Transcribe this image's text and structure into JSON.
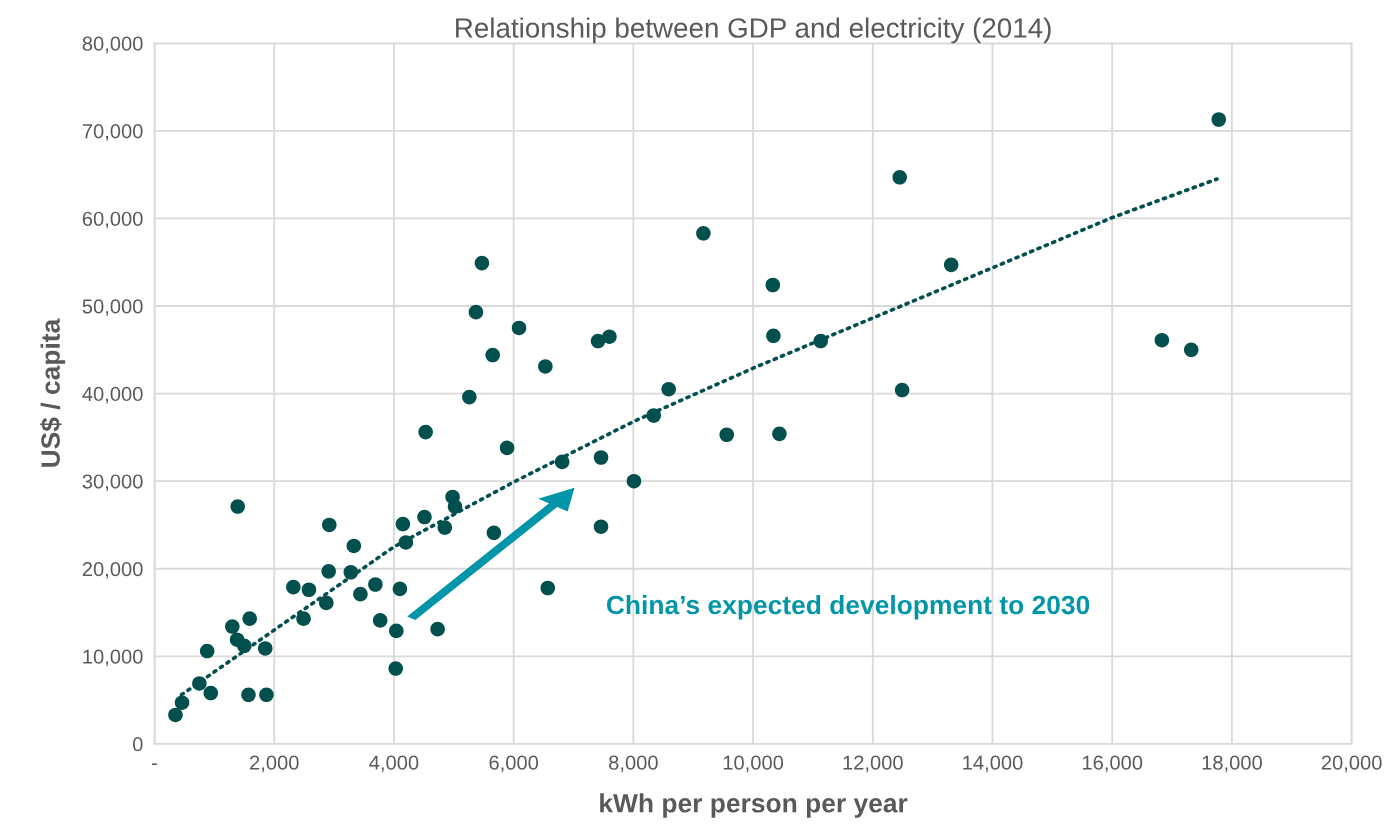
{
  "chart_data": {
    "type": "scatter",
    "title": "Relationship between GDP and electricity (2014)",
    "xlabel": "kWh per person per year",
    "ylabel": "US$ / capita",
    "series": [
      {
        "color": "#02504d",
        "marker": "circle",
        "x": [
          350,
          460,
          750,
          940,
          880,
          1300,
          1380,
          1500,
          1390,
          1590,
          1570,
          1850,
          1870,
          2320,
          2490,
          2580,
          2870,
          2920,
          2910,
          3280,
          3330,
          3440,
          3690,
          3770,
          4040,
          4030,
          4100,
          4150,
          4200,
          4510,
          4730,
          4850,
          4980,
          5020,
          5670,
          4530,
          5470,
          5370,
          6090,
          5650,
          6530,
          5260,
          5890,
          7410,
          7600,
          10330,
          10340,
          11130,
          8590,
          8340,
          9560,
          10440,
          7460,
          6810,
          8010,
          7460,
          6570,
          9170,
          12450,
          13310,
          12490,
          16830,
          17320,
          17780
        ],
        "values": [
          3300,
          4700,
          6900,
          5800,
          10600,
          13400,
          11900,
          11200,
          27100,
          14300,
          5600,
          10900,
          5600,
          17900,
          14300,
          17600,
          16100,
          25000,
          19700,
          19600,
          22600,
          17100,
          18200,
          14100,
          12900,
          8600,
          17700,
          25100,
          23000,
          25900,
          13100,
          24700,
          28200,
          27100,
          24100,
          35600,
          54900,
          49300,
          47500,
          44400,
          43100,
          39600,
          33800,
          46000,
          46500,
          52400,
          46600,
          46000,
          40500,
          37500,
          35300,
          35400,
          32700,
          32200,
          30000,
          24800,
          17800,
          58300,
          64700,
          54700,
          40400,
          46100,
          45000,
          71300
        ]
      },
      {
        "type": "line",
        "color": "#02504d",
        "line_style": "dotted",
        "x": [
          450,
          2000,
          4000,
          6000,
          8000,
          10000,
          16000,
          17750
        ],
        "values": [
          5600,
          13000,
          22500,
          29900,
          36800,
          42900,
          60100,
          64500
        ]
      }
    ],
    "annotations": [
      "China’s expected development to 2030"
    ],
    "grid": true,
    "xlim": [
      0,
      20000
    ],
    "xticks": [
      {
        "value": 0,
        "label": "-"
      },
      {
        "value": 2000,
        "label": "2,000"
      },
      {
        "value": 4000,
        "label": "4,000"
      },
      {
        "value": 6000,
        "label": "6,000"
      },
      {
        "value": 8000,
        "label": "8,000"
      },
      {
        "value": 10000,
        "label": "10,000"
      },
      {
        "value": 12000,
        "label": "12,000"
      },
      {
        "value": 14000,
        "label": "14,000"
      },
      {
        "value": 16000,
        "label": "16,000"
      },
      {
        "value": 18000,
        "label": "18,000"
      },
      {
        "value": 20000,
        "label": "20,000"
      }
    ],
    "ylim": [
      0,
      80000
    ],
    "yticks": [
      0,
      {
        "value": 10000,
        "label": "10,000"
      },
      {
        "value": 20000,
        "label": "20,000"
      },
      {
        "value": 30000,
        "label": "30,000"
      },
      {
        "value": 40000,
        "label": "40,000"
      },
      {
        "value": 50000,
        "label": "50,000"
      },
      {
        "value": 60000,
        "label": "60,000"
      },
      {
        "value": 70000,
        "label": "70,000"
      },
      {
        "value": 80000,
        "label": "80,000"
      }
    ]
  }
}
